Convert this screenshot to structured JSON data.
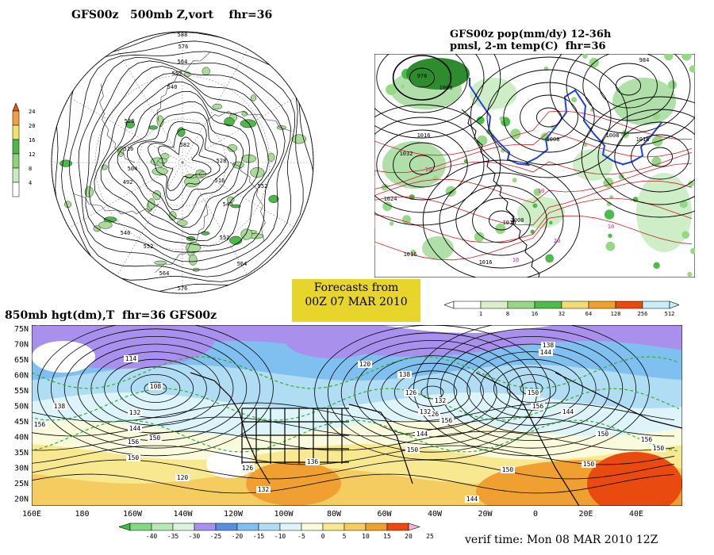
{
  "panels": {
    "polar": {
      "title": "GFS00z   500mb Z,vort    fhr=36",
      "colorbar": {
        "ticks": [
          "4",
          "8",
          "12",
          "16",
          "20",
          "24"
        ],
        "colors": [
          "#ffffff",
          "#c8ecc0",
          "#8cd47a",
          "#4cb84a",
          "#f4e070",
          "#f0a040",
          "#e05a20"
        ]
      },
      "contour_labels": [
        "588",
        "576",
        "564",
        "552",
        "540",
        "528",
        "516",
        "504",
        "492",
        "540",
        "552",
        "564",
        "576",
        "582",
        "552",
        "540",
        "528",
        "516",
        "564",
        "552"
      ]
    },
    "na": {
      "title_line1": "GFS00z pop(mm/dy) 12-36h",
      "title_line2": "pmsl, 2-m temp(C)  fhr=36",
      "isobar_labels": [
        "1008",
        "1016",
        "1024",
        "1032",
        "1016",
        "1008",
        "1016",
        "1016",
        "1008",
        "1016",
        "984",
        "976",
        "1000"
      ],
      "temp_labels": [
        "10",
        "10",
        "10",
        "10",
        "20"
      ],
      "colorbar": {
        "ticks": [
          "1",
          "8",
          "16",
          "32",
          "64",
          "128",
          "256",
          "512"
        ],
        "colors": [
          "#ffffff",
          "#d8f0c8",
          "#96d888",
          "#4cbb4c",
          "#f2dc72",
          "#f0a030",
          "#e84a10",
          "#c8ecf8"
        ]
      }
    },
    "banner": {
      "line1": "Forecasts from",
      "line2": "00Z 07 MAR 2010"
    },
    "h850": {
      "title": "850mb hgt(dm),T  fhr=36 GFS00z",
      "lat_labels": [
        "75N",
        "70N",
        "65N",
        "60N",
        "55N",
        "50N",
        "45N",
        "40N",
        "35N",
        "30N",
        "25N",
        "20N"
      ],
      "lon_labels": [
        "160E",
        "180",
        "160W",
        "140W",
        "120W",
        "100W",
        "80W",
        "60W",
        "40W",
        "20W",
        "0",
        "20E",
        "40E"
      ],
      "contour_labels": [
        "114",
        "108",
        "138",
        "132",
        "144",
        "150",
        "156",
        "156",
        "150",
        "120",
        "126",
        "132",
        "136",
        "132",
        "126",
        "120",
        "126",
        "132",
        "138",
        "144",
        "150",
        "156",
        "144",
        "150",
        "138",
        "144",
        "150",
        "156",
        "144",
        "150",
        "156",
        "150",
        "150"
      ],
      "colorbar": {
        "ticks": [
          "-40",
          "-35",
          "-30",
          "-25",
          "-20",
          "-15",
          "-10",
          "-5",
          "0",
          "5",
          "10",
          "15",
          "20",
          "25"
        ],
        "colors": [
          "#40c040",
          "#84d884",
          "#b4e8b4",
          "#dcf4dc",
          "#a890ec",
          "#5890e0",
          "#80c0f0",
          "#b0dcf4",
          "#dcf4fa",
          "#fafadc",
          "#f8e890",
          "#f4cc60",
          "#f0a030",
          "#e84a10",
          "#f4b4d0"
        ]
      }
    },
    "verif": "verif time: Mon 08 MAR 2010 12Z"
  }
}
